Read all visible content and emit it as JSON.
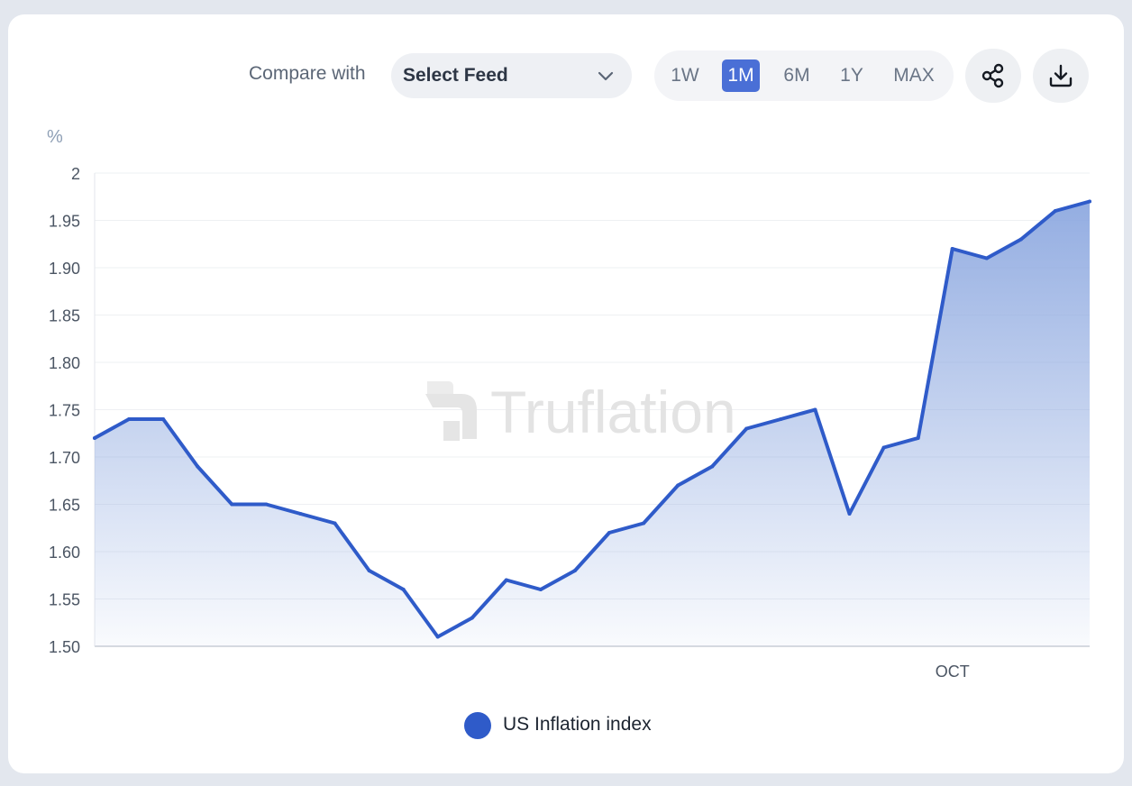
{
  "toolbar": {
    "compare_label": "Compare with",
    "feed_select_value": "Select Feed",
    "ranges": [
      "1W",
      "1M",
      "6M",
      "1Y",
      "MAX"
    ],
    "active_range": "1M",
    "share_icon": "share-icon",
    "download_icon": "download-icon"
  },
  "watermark": "Truflation",
  "colors": {
    "line": "#2f5bc9",
    "area_top": "#8ea9e0",
    "active_range_bg": "#4a6fd6"
  },
  "chart_data": {
    "type": "area",
    "ylabel": "%",
    "ylim": [
      1.5,
      2.0
    ],
    "y_ticks": [
      "2",
      "1.95",
      "1.90",
      "1.85",
      "1.80",
      "1.75",
      "1.70",
      "1.65",
      "1.60",
      "1.55",
      "1.50"
    ],
    "x_tick_labels": [
      {
        "index": 25,
        "label": "OCT"
      }
    ],
    "grid": true,
    "legend_position": "bottom",
    "series": [
      {
        "name": "US Inflation index",
        "values": [
          1.72,
          1.74,
          1.74,
          1.69,
          1.65,
          1.65,
          1.64,
          1.63,
          1.58,
          1.56,
          1.51,
          1.53,
          1.57,
          1.56,
          1.58,
          1.62,
          1.63,
          1.67,
          1.69,
          1.73,
          1.74,
          1.75,
          1.64,
          1.71,
          1.72,
          1.92,
          1.91,
          1.93,
          1.96,
          1.97
        ]
      }
    ]
  }
}
